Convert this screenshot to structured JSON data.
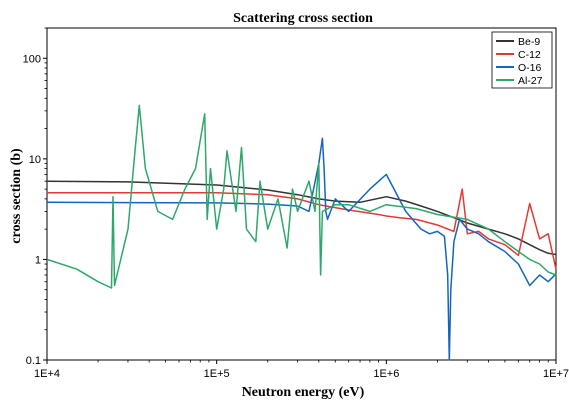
{
  "chart_data": {
    "type": "line",
    "title": "Scattering cross section",
    "xlabel": "Neutron energy (eV)",
    "ylabel": "cross section (b)",
    "x_scale": "log",
    "y_scale": "log",
    "xlim": [
      10000,
      10000000
    ],
    "ylim": [
      0.1,
      200
    ],
    "x_ticks": [
      {
        "value": 10000,
        "label": "1E+4"
      },
      {
        "value": 100000,
        "label": "1E+5"
      },
      {
        "value": 1000000,
        "label": "1E+6"
      },
      {
        "value": 10000000,
        "label": "1E+7"
      }
    ],
    "y_ticks": [
      {
        "value": 0.1,
        "label": "0.1"
      },
      {
        "value": 1,
        "label": "1"
      },
      {
        "value": 10,
        "label": "10"
      },
      {
        "value": 100,
        "label": "100"
      }
    ],
    "grid": false,
    "legend_position": "top-right",
    "series": [
      {
        "name": "Be-9",
        "color": "#333333",
        "x": [
          10000,
          30000,
          100000,
          200000,
          300000,
          400000,
          500000,
          700000,
          1000000,
          1300000,
          1600000,
          2000000,
          2500000,
          3000000,
          4000000,
          5000000,
          6000000,
          7000000,
          8000000,
          9000000,
          10000000
        ],
        "y": [
          6.0,
          5.9,
          5.5,
          4.9,
          4.4,
          4.0,
          3.8,
          3.7,
          4.2,
          3.8,
          3.4,
          3.0,
          2.6,
          2.3,
          2.0,
          1.8,
          1.6,
          1.4,
          1.25,
          1.15,
          1.12
        ]
      },
      {
        "name": "C-12",
        "color": "#e53935",
        "x": [
          10000,
          100000,
          200000,
          300000,
          400000,
          600000,
          900000,
          1000000,
          1200000,
          1500000,
          2000000,
          2500000,
          2800000,
          3000000,
          3500000,
          4000000,
          5000000,
          6000000,
          7000000,
          8000000,
          9000000,
          10000000
        ],
        "y": [
          4.6,
          4.6,
          4.4,
          4.0,
          3.5,
          3.1,
          2.8,
          2.7,
          2.6,
          2.5,
          2.2,
          1.9,
          5.0,
          1.8,
          1.9,
          1.6,
          1.4,
          1.1,
          3.6,
          1.6,
          1.8,
          0.8
        ],
        "description_free_points_only": true
      },
      {
        "name": "O-16",
        "color": "#1565c0",
        "x": [
          10000,
          100000,
          200000,
          300000,
          350000,
          400000,
          420000,
          430000,
          440000,
          450000,
          500000,
          600000,
          800000,
          1000000,
          1300000,
          1600000,
          1800000,
          2000000,
          2200000,
          2300000,
          2350000,
          2400000,
          2500000,
          2700000,
          3000000,
          3500000,
          4000000,
          5000000,
          6000000,
          7000000,
          8000000,
          9000000,
          10000000
        ],
        "y": [
          3.7,
          3.65,
          3.55,
          3.4,
          3.0,
          9.0,
          16.0,
          8.0,
          3.0,
          2.5,
          4.0,
          3.0,
          5.0,
          7.0,
          3.0,
          2.0,
          1.8,
          1.9,
          1.7,
          0.7,
          0.1,
          0.5,
          1.5,
          2.5,
          2.0,
          1.8,
          1.5,
          1.2,
          0.9,
          0.55,
          0.7,
          0.6,
          0.72
        ]
      },
      {
        "name": "Al-27",
        "color": "#2ea86a",
        "x": [
          10000,
          15000,
          20000,
          24000,
          24500,
          25000,
          30000,
          33000,
          35000,
          38000,
          45000,
          55000,
          65000,
          75000,
          85000,
          88000,
          92000,
          100000,
          110000,
          115000,
          130000,
          140000,
          150000,
          170000,
          180000,
          200000,
          230000,
          260000,
          280000,
          300000,
          350000,
          380000,
          400000,
          410000,
          420000,
          500000,
          600000,
          800000,
          1000000,
          1500000,
          2000000,
          3000000,
          4000000,
          5000000,
          6000000,
          7000000,
          8000000,
          9000000,
          10000000
        ],
        "y": [
          1.0,
          0.8,
          0.6,
          0.52,
          4.2,
          0.55,
          2.0,
          12.0,
          34.0,
          8.0,
          3.0,
          2.5,
          5.0,
          8.0,
          28.0,
          2.5,
          8.0,
          2.0,
          5.0,
          12.0,
          3.0,
          13.0,
          2.0,
          1.5,
          6.0,
          2.0,
          4.0,
          1.3,
          5.0,
          3.0,
          6.0,
          3.0,
          9.0,
          0.7,
          3.0,
          3.5,
          3.5,
          3.0,
          3.5,
          3.2,
          2.8,
          2.5,
          2.0,
          1.5,
          1.2,
          1.0,
          0.9,
          0.75,
          0.7
        ]
      }
    ]
  }
}
